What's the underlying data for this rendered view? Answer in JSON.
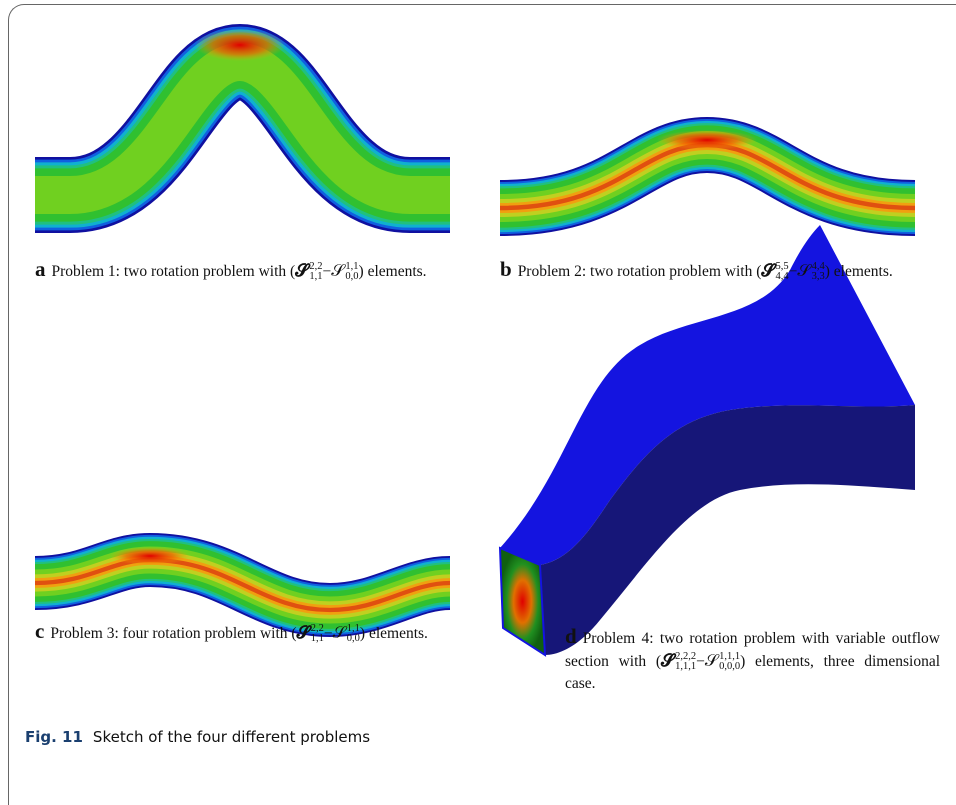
{
  "panels": [
    {
      "label": "a",
      "text": "Problem 1: two rotation problem with",
      "math": [
        "(",
        {
          "base": "𝓢",
          "sup": "2,2",
          "sub": "1,1"
        },
        "−",
        {
          "base": "𝒮",
          "sup": "1,1",
          "sub": "0,0"
        },
        ")"
      ],
      "tail": "elements."
    },
    {
      "label": "b",
      "text": "Problem 2: two rotation problem with",
      "math": [
        "(",
        {
          "base": "𝓢",
          "sup": "5,5",
          "sub": "4,4"
        },
        "−",
        {
          "base": "𝒮",
          "sup": "4,4",
          "sub": "3,3"
        },
        ")"
      ],
      "tail": "elements."
    },
    {
      "label": "c",
      "text": "Problem 3: four rotation problem with",
      "math": [
        "(",
        {
          "base": "𝓢",
          "sup": "2,2",
          "sub": "1,1"
        },
        "−",
        {
          "base": "𝒮",
          "sup": "1,1",
          "sub": "0,0"
        },
        ")"
      ],
      "tail": "elements."
    },
    {
      "label": "d",
      "text": "Problem 4: two rotation problem with variable outflow section with",
      "math": [
        "(",
        {
          "base": "𝓢",
          "sup": "2,2,2",
          "sub": "1,1,1"
        },
        "−",
        {
          "base": "𝒮",
          "sup": "1,1,1",
          "sub": "0,0,0"
        },
        ")"
      ],
      "tail": "elements, three dimensional case."
    }
  ],
  "caption": {
    "label": "Fig. 11",
    "text": "Sketch of the four different problems"
  }
}
